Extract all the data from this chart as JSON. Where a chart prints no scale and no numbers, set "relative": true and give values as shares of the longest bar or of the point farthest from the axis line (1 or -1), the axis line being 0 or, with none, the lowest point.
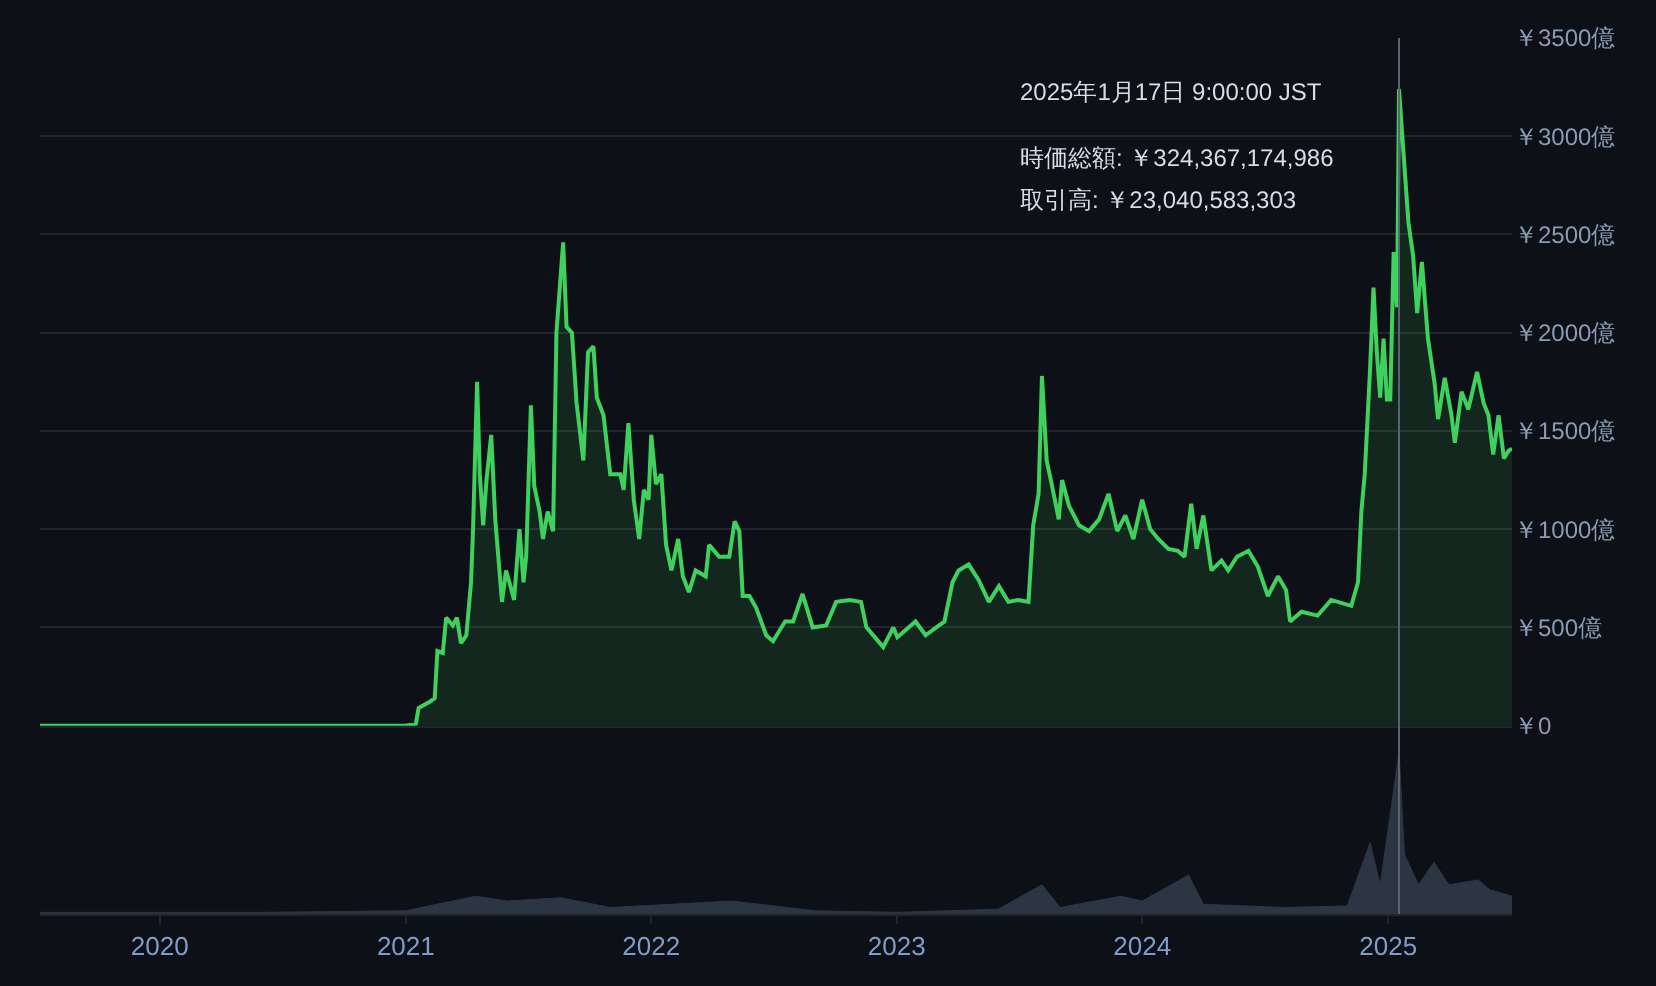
{
  "chart_data": [
    {
      "type": "area",
      "color": "#3fd05d",
      "grid": "y",
      "tick_labels": "y",
      "x": [
        "2019-07-07",
        "2021-01-01",
        "2021-01-16",
        "2021-01-20",
        "2021-02-05",
        "2021-02-13",
        "2021-02-17",
        "2021-02-25",
        "2021-03-02",
        "2021-03-12",
        "2021-03-18",
        "2021-03-24",
        "2021-04-01",
        "2021-04-08",
        "2021-04-11",
        "2021-04-17",
        "2021-04-21",
        "2021-04-26",
        "2021-05-01",
        "2021-05-08",
        "2021-05-14",
        "2021-05-24",
        "2021-05-30",
        "2021-06-04",
        "2021-06-11",
        "2021-06-19",
        "2021-06-25",
        "2021-06-29",
        "2021-07-06",
        "2021-07-11",
        "2021-07-19",
        "2021-07-24",
        "2021-07-31",
        "2021-08-08",
        "2021-08-13",
        "2021-08-23",
        "2021-08-28",
        "2021-09-05",
        "2021-09-12",
        "2021-09-22",
        "2021-09-29",
        "2021-10-07",
        "2021-10-12",
        "2021-10-22",
        "2021-11-01",
        "2021-11-16",
        "2021-11-21",
        "2021-11-28",
        "2021-12-06",
        "2021-12-14",
        "2021-12-21",
        "2021-12-28",
        "2022-01-01",
        "2022-01-08",
        "2022-01-16",
        "2022-01-23",
        "2022-01-31",
        "2022-02-10",
        "2022-02-17",
        "2022-02-26",
        "2022-03-08",
        "2022-03-23",
        "2022-03-28",
        "2022-04-12",
        "2022-04-27",
        "2022-05-05",
        "2022-05-12",
        "2022-05-17",
        "2022-05-27",
        "2022-06-06",
        "2022-06-21",
        "2022-07-01",
        "2022-07-19",
        "2022-07-31",
        "2022-08-14",
        "2022-08-29",
        "2022-09-18",
        "2022-10-03",
        "2022-10-23",
        "2022-11-09",
        "2022-11-17",
        "2022-12-12",
        "2022-12-27",
        "2023-01-02",
        "2023-01-29",
        "2023-02-13",
        "2023-03-05",
        "2023-03-13",
        "2023-03-25",
        "2023-04-03",
        "2023-04-18",
        "2023-05-03",
        "2023-05-18",
        "2023-06-02",
        "2023-06-16",
        "2023-07-01",
        "2023-07-16",
        "2023-07-23",
        "2023-07-31",
        "2023-08-05",
        "2023-08-12",
        "2023-08-20",
        "2023-08-30",
        "2023-09-04",
        "2023-09-14",
        "2023-09-29",
        "2023-10-14",
        "2023-10-29",
        "2023-11-12",
        "2023-11-25",
        "2023-12-07",
        "2023-12-19",
        "2024-01-01",
        "2024-01-13",
        "2024-01-25",
        "2024-02-09",
        "2024-02-23",
        "2024-03-04",
        "2024-03-14",
        "2024-03-22",
        "2024-04-01",
        "2024-04-13",
        "2024-04-28",
        "2024-05-08",
        "2024-05-21",
        "2024-06-07",
        "2024-06-21",
        "2024-07-06",
        "2024-07-21",
        "2024-08-02",
        "2024-08-08",
        "2024-08-25",
        "2024-09-18",
        "2024-10-08",
        "2024-11-07",
        "2024-11-17",
        "2024-11-22",
        "2024-11-27",
        "2024-12-05",
        "2024-12-10",
        "2024-12-15",
        "2024-12-20",
        "2024-12-25",
        "2024-12-30",
        "2025-01-04",
        "2025-01-09",
        "2025-01-14",
        "2025-01-17",
        "2025-01-31",
        "2025-02-07",
        "2025-02-13",
        "2025-02-20",
        "2025-03-01",
        "2025-03-11",
        "2025-03-16",
        "2025-03-26",
        "2025-04-05",
        "2025-04-10",
        "2025-04-20",
        "2025-04-30",
        "2025-05-13",
        "2025-05-23",
        "2025-05-30",
        "2025-06-06",
        "2025-06-14",
        "2025-06-22",
        "2025-06-29",
        "2025-07-04"
      ],
      "values": [
        0,
        0,
        10,
        90,
        120,
        140,
        380,
        370,
        550,
        510,
        550,
        420,
        460,
        730,
        1000,
        1750,
        1280,
        1020,
        1250,
        1480,
        1050,
        630,
        790,
        730,
        640,
        1000,
        730,
        860,
        1630,
        1220,
        1090,
        950,
        1090,
        990,
        2000,
        2460,
        2030,
        2000,
        1640,
        1350,
        1900,
        1930,
        1670,
        1580,
        1280,
        1280,
        1200,
        1540,
        1150,
        950,
        1200,
        1150,
        1480,
        1230,
        1280,
        920,
        790,
        950,
        760,
        680,
        790,
        760,
        920,
        860,
        860,
        1040,
        990,
        660,
        660,
        600,
        460,
        430,
        530,
        530,
        670,
        500,
        510,
        630,
        640,
        630,
        500,
        400,
        500,
        450,
        530,
        460,
        510,
        530,
        730,
        790,
        820,
        740,
        630,
        710,
        630,
        640,
        630,
        1020,
        1180,
        1780,
        1350,
        1220,
        1050,
        1250,
        1120,
        1020,
        990,
        1050,
        1180,
        990,
        1070,
        950,
        1150,
        1000,
        950,
        900,
        890,
        860,
        1130,
        900,
        1070,
        790,
        840,
        790,
        860,
        890,
        810,
        660,
        760,
        690,
        530,
        580,
        560,
        640,
        610,
        730,
        1090,
        1280,
        1820,
        2230,
        1900,
        1670,
        1970,
        1660,
        1660,
        2410,
        2130,
        3240,
        2560,
        2390,
        2100,
        2360,
        1970,
        1740,
        1560,
        1770,
        1580,
        1440,
        1700,
        1610,
        1800,
        1640,
        1580,
        1380,
        1580,
        1360,
        1400,
        1410
      ],
      "xlim": [
        "2019-07-07",
        "2025-07-04"
      ],
      "xticks": [
        "2020",
        "2021",
        "2022",
        "2023",
        "2024",
        "2025"
      ],
      "ylim": [
        0,
        3500
      ],
      "yticks": [
        {
          "value": 0,
          "label": "￥0"
        },
        {
          "value": 500,
          "label": "￥500億"
        },
        {
          "value": 1000,
          "label": "￥1000億"
        },
        {
          "value": 1500,
          "label": "￥1500億"
        },
        {
          "value": 2000,
          "label": "￥2000億"
        },
        {
          "value": 2500,
          "label": "￥2500億"
        },
        {
          "value": 3000,
          "label": "￥3000億"
        },
        {
          "value": 3500,
          "label": "￥3500億"
        }
      ],
      "ref_lines": [
        {
          "axis": "x",
          "value": "2025-01-17",
          "color": "#5a6370"
        }
      ],
      "annotations": [
        "2025年1月17日 9:00:00 JST",
        "時価総額: ￥324,367,174,986",
        "取引高: ￥23,040,583,303"
      ]
    },
    {
      "type": "area",
      "relative": true,
      "color": "#2b3544",
      "tick_labels": "x",
      "grid": false,
      "x": [
        "2019-07-07",
        "2020-06-01",
        "2021-01-01",
        "2021-04-15",
        "2021-06-01",
        "2021-08-20",
        "2021-11-01",
        "2022-05-01",
        "2022-09-01",
        "2023-01-01",
        "2023-06-01",
        "2023-08-05",
        "2023-09-01",
        "2023-12-01",
        "2024-01-01",
        "2024-03-10",
        "2024-04-01",
        "2024-08-01",
        "2024-11-01",
        "2024-12-05",
        "2024-12-20",
        "2025-01-17",
        "2025-01-25",
        "2025-02-15",
        "2025-03-10",
        "2025-04-01",
        "2025-05-15",
        "2025-06-01",
        "2025-07-04"
      ],
      "values": [
        0.01,
        0.01,
        0.02,
        0.11,
        0.08,
        0.1,
        0.04,
        0.08,
        0.02,
        0.01,
        0.03,
        0.18,
        0.04,
        0.11,
        0.08,
        0.24,
        0.06,
        0.04,
        0.05,
        0.44,
        0.18,
        1,
        0.37,
        0.18,
        0.32,
        0.18,
        0.21,
        0.15,
        0.11
      ],
      "xlim": [
        "2019-07-07",
        "2025-07-04"
      ],
      "xticks": [
        "2020",
        "2021",
        "2022",
        "2023",
        "2024",
        "2025"
      ]
    }
  ]
}
